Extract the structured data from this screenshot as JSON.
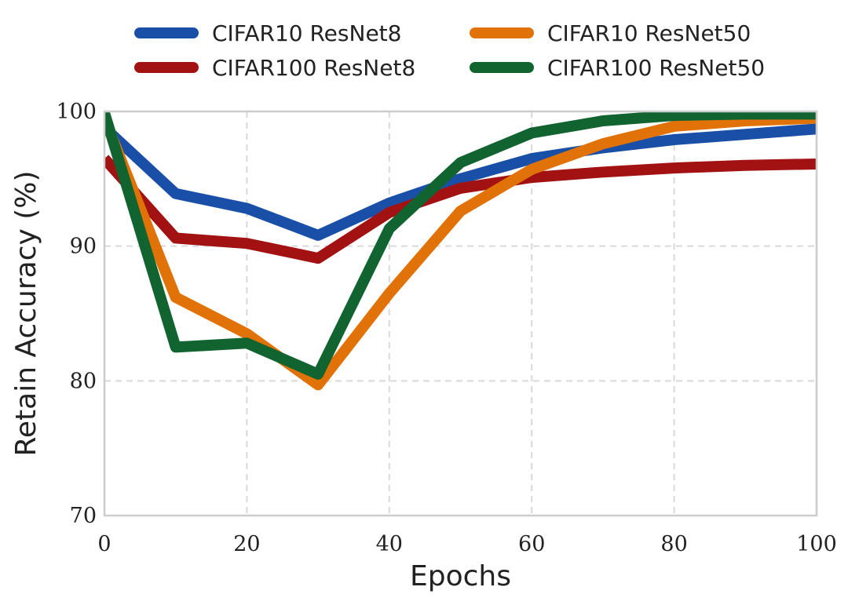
{
  "chart_data": {
    "type": "line",
    "title": "",
    "xlabel": "Epochs",
    "ylabel": "Retain Accuracy (%)",
    "xlim": [
      0,
      100
    ],
    "ylim": [
      70,
      100
    ],
    "xticks": [
      0,
      20,
      40,
      60,
      80,
      100
    ],
    "yticks": [
      70,
      80,
      90,
      100
    ],
    "grid": true,
    "legend_position": "top-center",
    "x": [
      0,
      10,
      20,
      30,
      40,
      50,
      60,
      70,
      80,
      90,
      100
    ],
    "series": [
      {
        "name": "CIFAR10 ResNet8",
        "color": "#1a4fa8",
        "values": [
          98.8,
          93.9,
          92.8,
          90.8,
          93.2,
          95.0,
          96.5,
          97.3,
          97.9,
          98.3,
          98.7
        ]
      },
      {
        "name": "CIFAR100 ResNet8",
        "color": "#a31212",
        "values": [
          96.5,
          90.6,
          90.2,
          89.1,
          92.5,
          94.3,
          95.1,
          95.5,
          95.8,
          96.0,
          96.1
        ]
      },
      {
        "name": "CIFAR10 ResNet50",
        "color": "#e07208",
        "values": [
          99.5,
          86.2,
          83.5,
          79.7,
          86.5,
          92.6,
          95.7,
          97.6,
          98.9,
          99.3,
          99.5
        ]
      },
      {
        "name": "CIFAR100 ResNet50",
        "color": "#116430",
        "values": [
          99.9,
          82.5,
          82.8,
          80.5,
          91.3,
          96.2,
          98.4,
          99.3,
          99.7,
          99.8,
          99.8
        ]
      }
    ]
  }
}
